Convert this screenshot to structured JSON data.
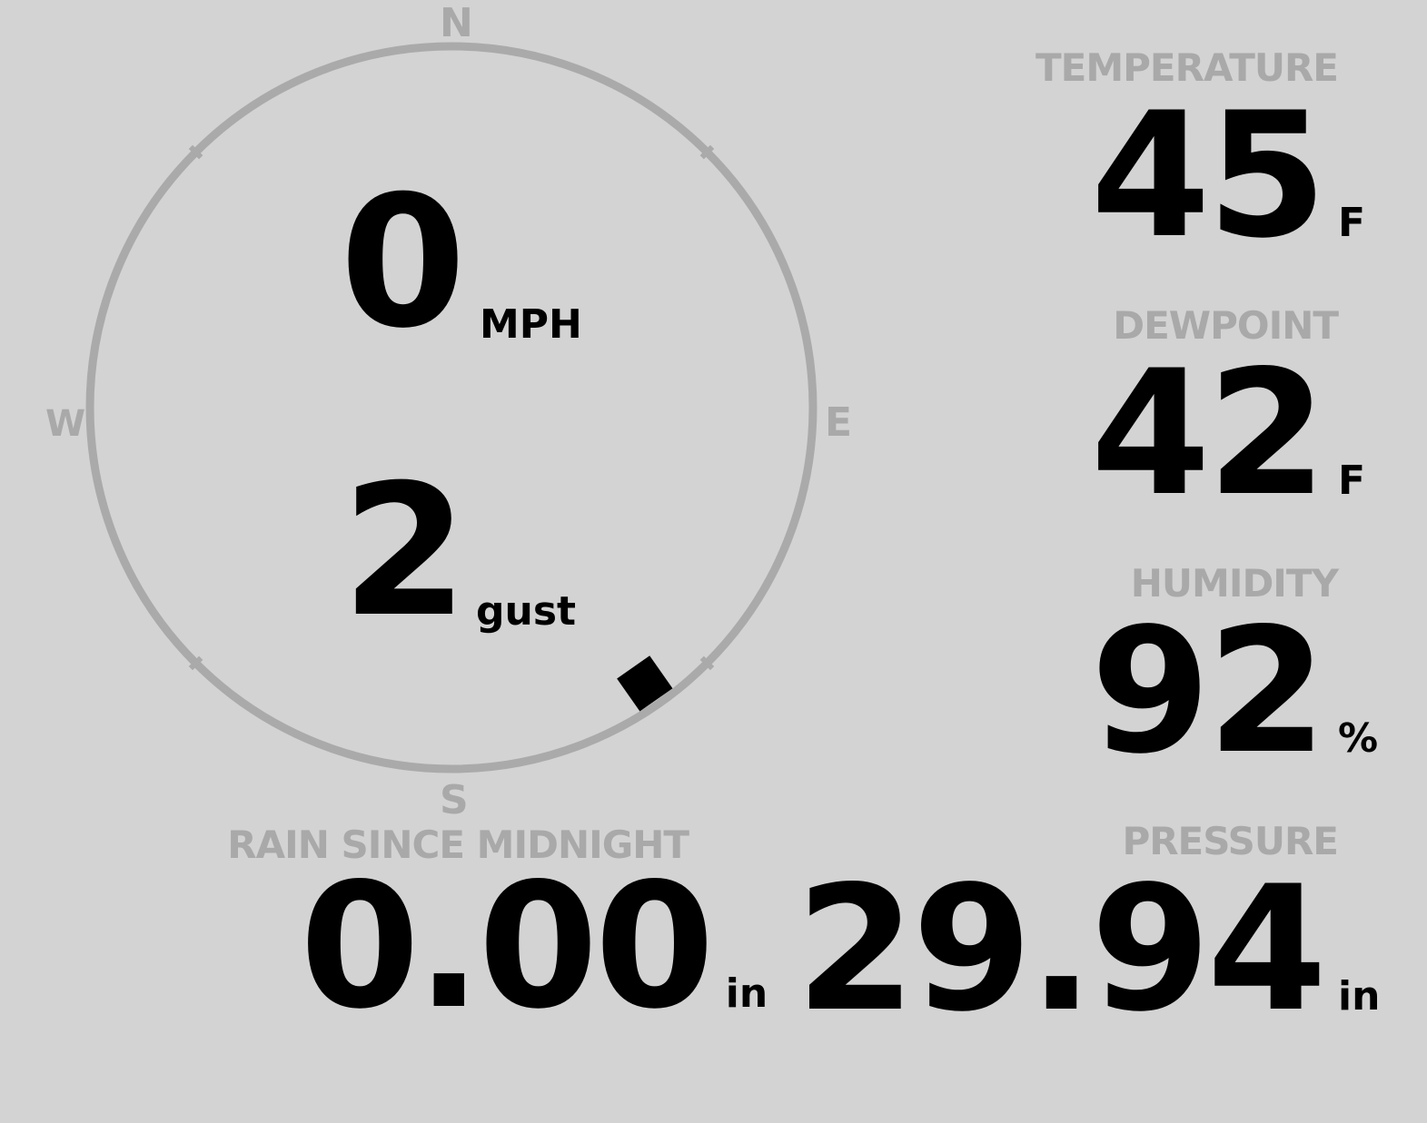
{
  "wind": {
    "speed": "0",
    "speed_unit": "MPH",
    "gust": "2",
    "gust_unit": "gust",
    "direction_degrees": 145,
    "compass": {
      "n": "N",
      "e": "E",
      "s": "S",
      "w": "W"
    }
  },
  "temperature": {
    "label": "TEMPERATURE",
    "value": "45",
    "unit": "F"
  },
  "dewpoint": {
    "label": "DEWPOINT",
    "value": "42",
    "unit": "F"
  },
  "humidity": {
    "label": "HUMIDITY",
    "value": "92",
    "unit": "%"
  },
  "rain": {
    "label": "RAIN SINCE MIDNIGHT",
    "value": "0.00",
    "unit": "in"
  },
  "pressure": {
    "label": "PRESSURE",
    "value": "29.94",
    "unit": "in"
  },
  "colors": {
    "background": "#d3d3d3",
    "ring": "#aaaaaa",
    "label": "#a9a9a9",
    "value": "#000000"
  }
}
